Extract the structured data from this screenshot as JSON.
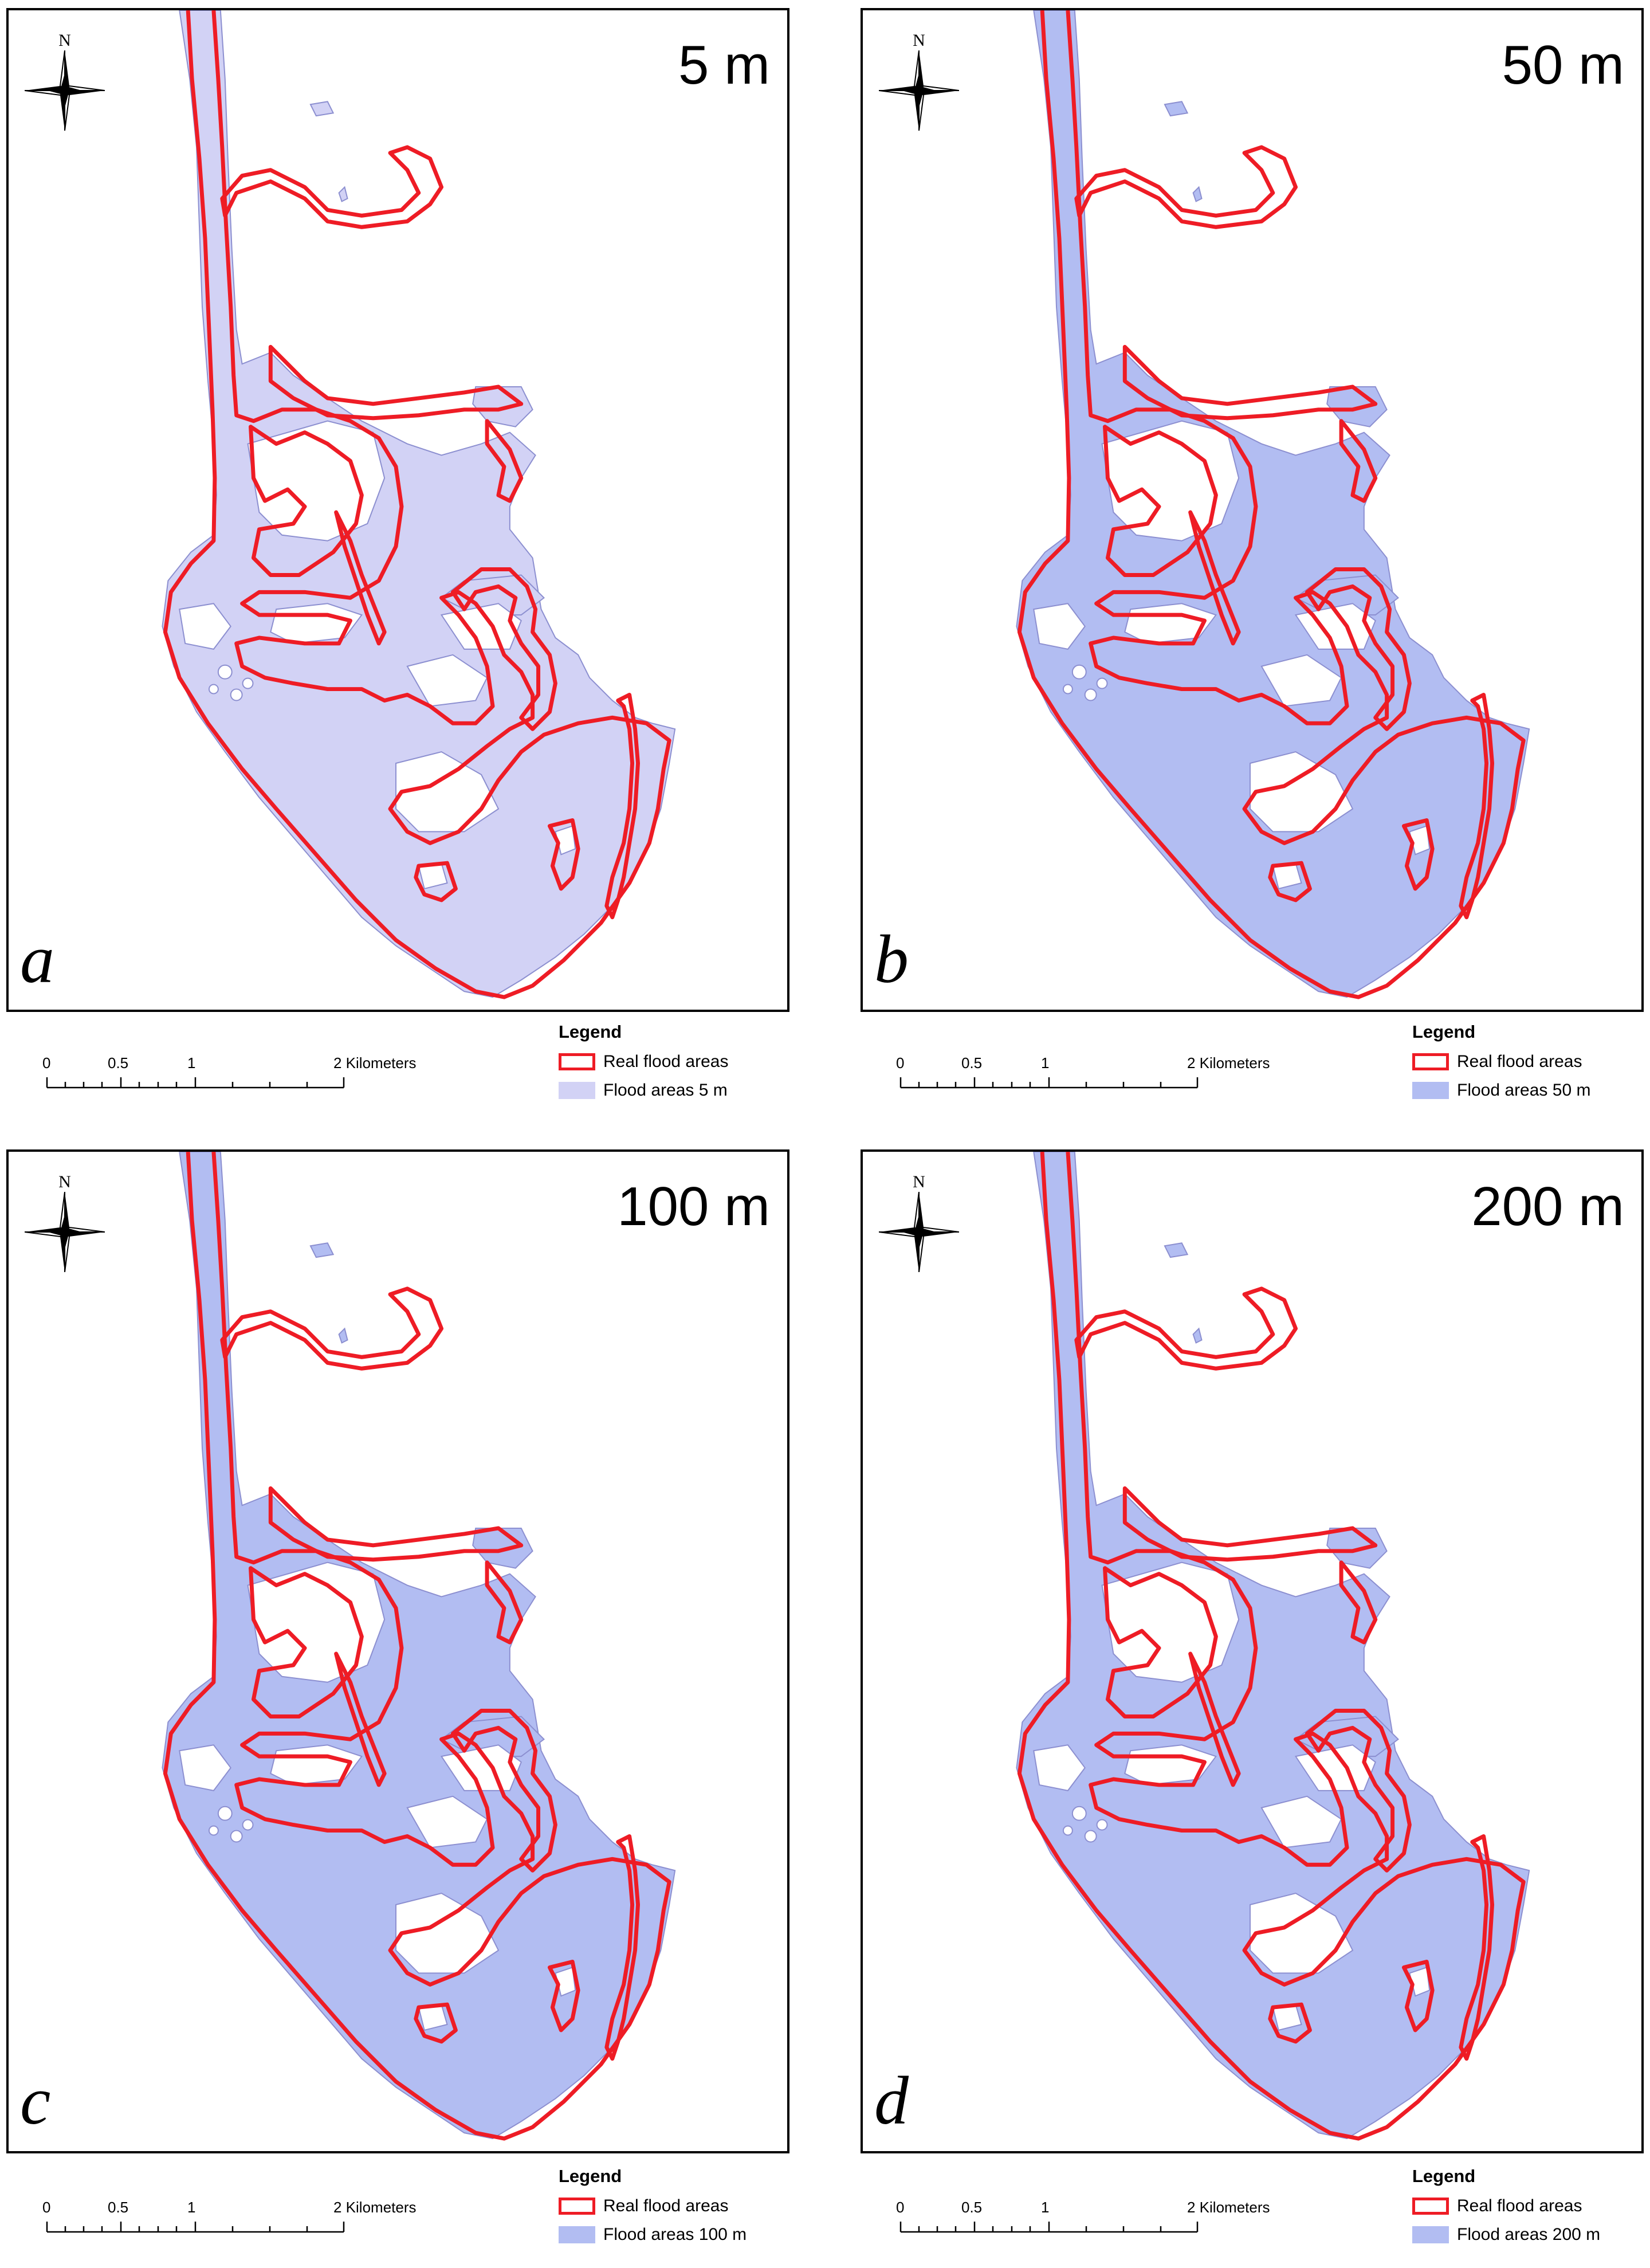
{
  "panels": [
    {
      "id": "a",
      "resolution_label": "5 m",
      "letter": "a",
      "flood_color": "#d2d2f5",
      "legend": {
        "title": "Legend",
        "real_label": "Real flood areas",
        "flood_label": "Flood areas 5 m"
      }
    },
    {
      "id": "b",
      "resolution_label": "50 m",
      "letter": "b",
      "flood_color": "#b2bdf2",
      "legend": {
        "title": "Legend",
        "real_label": "Real flood areas",
        "flood_label": "Flood areas 50 m"
      }
    },
    {
      "id": "c",
      "resolution_label": "100 m",
      "letter": "c",
      "flood_color": "#b2bdf2",
      "legend": {
        "title": "Legend",
        "real_label": "Real flood areas",
        "flood_label": "Flood areas 100 m"
      }
    },
    {
      "id": "d",
      "resolution_label": "200 m",
      "letter": "d",
      "flood_color": "#b2bdf2",
      "legend": {
        "title": "Legend",
        "real_label": "Real flood areas",
        "flood_label": "Flood areas 200 m"
      }
    }
  ],
  "north_arrow": {
    "letter": "N",
    "icon": "north-arrow-compass-icon"
  },
  "scale_bar": {
    "labels": [
      "0",
      "0.5",
      "1",
      "2 Kilometers"
    ]
  },
  "colors": {
    "real_flood_outline": "#ee1c25",
    "frame": "#000000"
  }
}
